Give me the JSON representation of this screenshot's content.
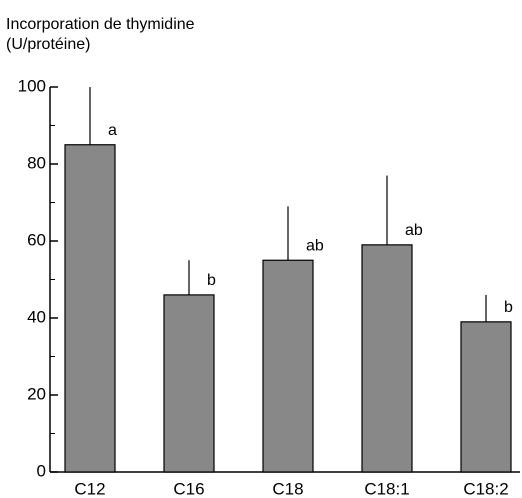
{
  "chart_data": {
    "type": "bar",
    "y_label": [
      "Incorporation de thymidine",
      "(U/protéine)"
    ],
    "categories": [
      "C12",
      "C16",
      "C18",
      "C18:1",
      "C18:2"
    ],
    "values": [
      85,
      46,
      55,
      59,
      39
    ],
    "errors": [
      15,
      9,
      14,
      18,
      7
    ],
    "annotations": [
      "a",
      "b",
      "ab",
      "ab",
      "b"
    ],
    "color": "#888888",
    "ylim": [
      0,
      100
    ],
    "yticks": [
      0,
      20,
      40,
      60,
      80,
      100
    ],
    "minor_tick_step": 10
  }
}
